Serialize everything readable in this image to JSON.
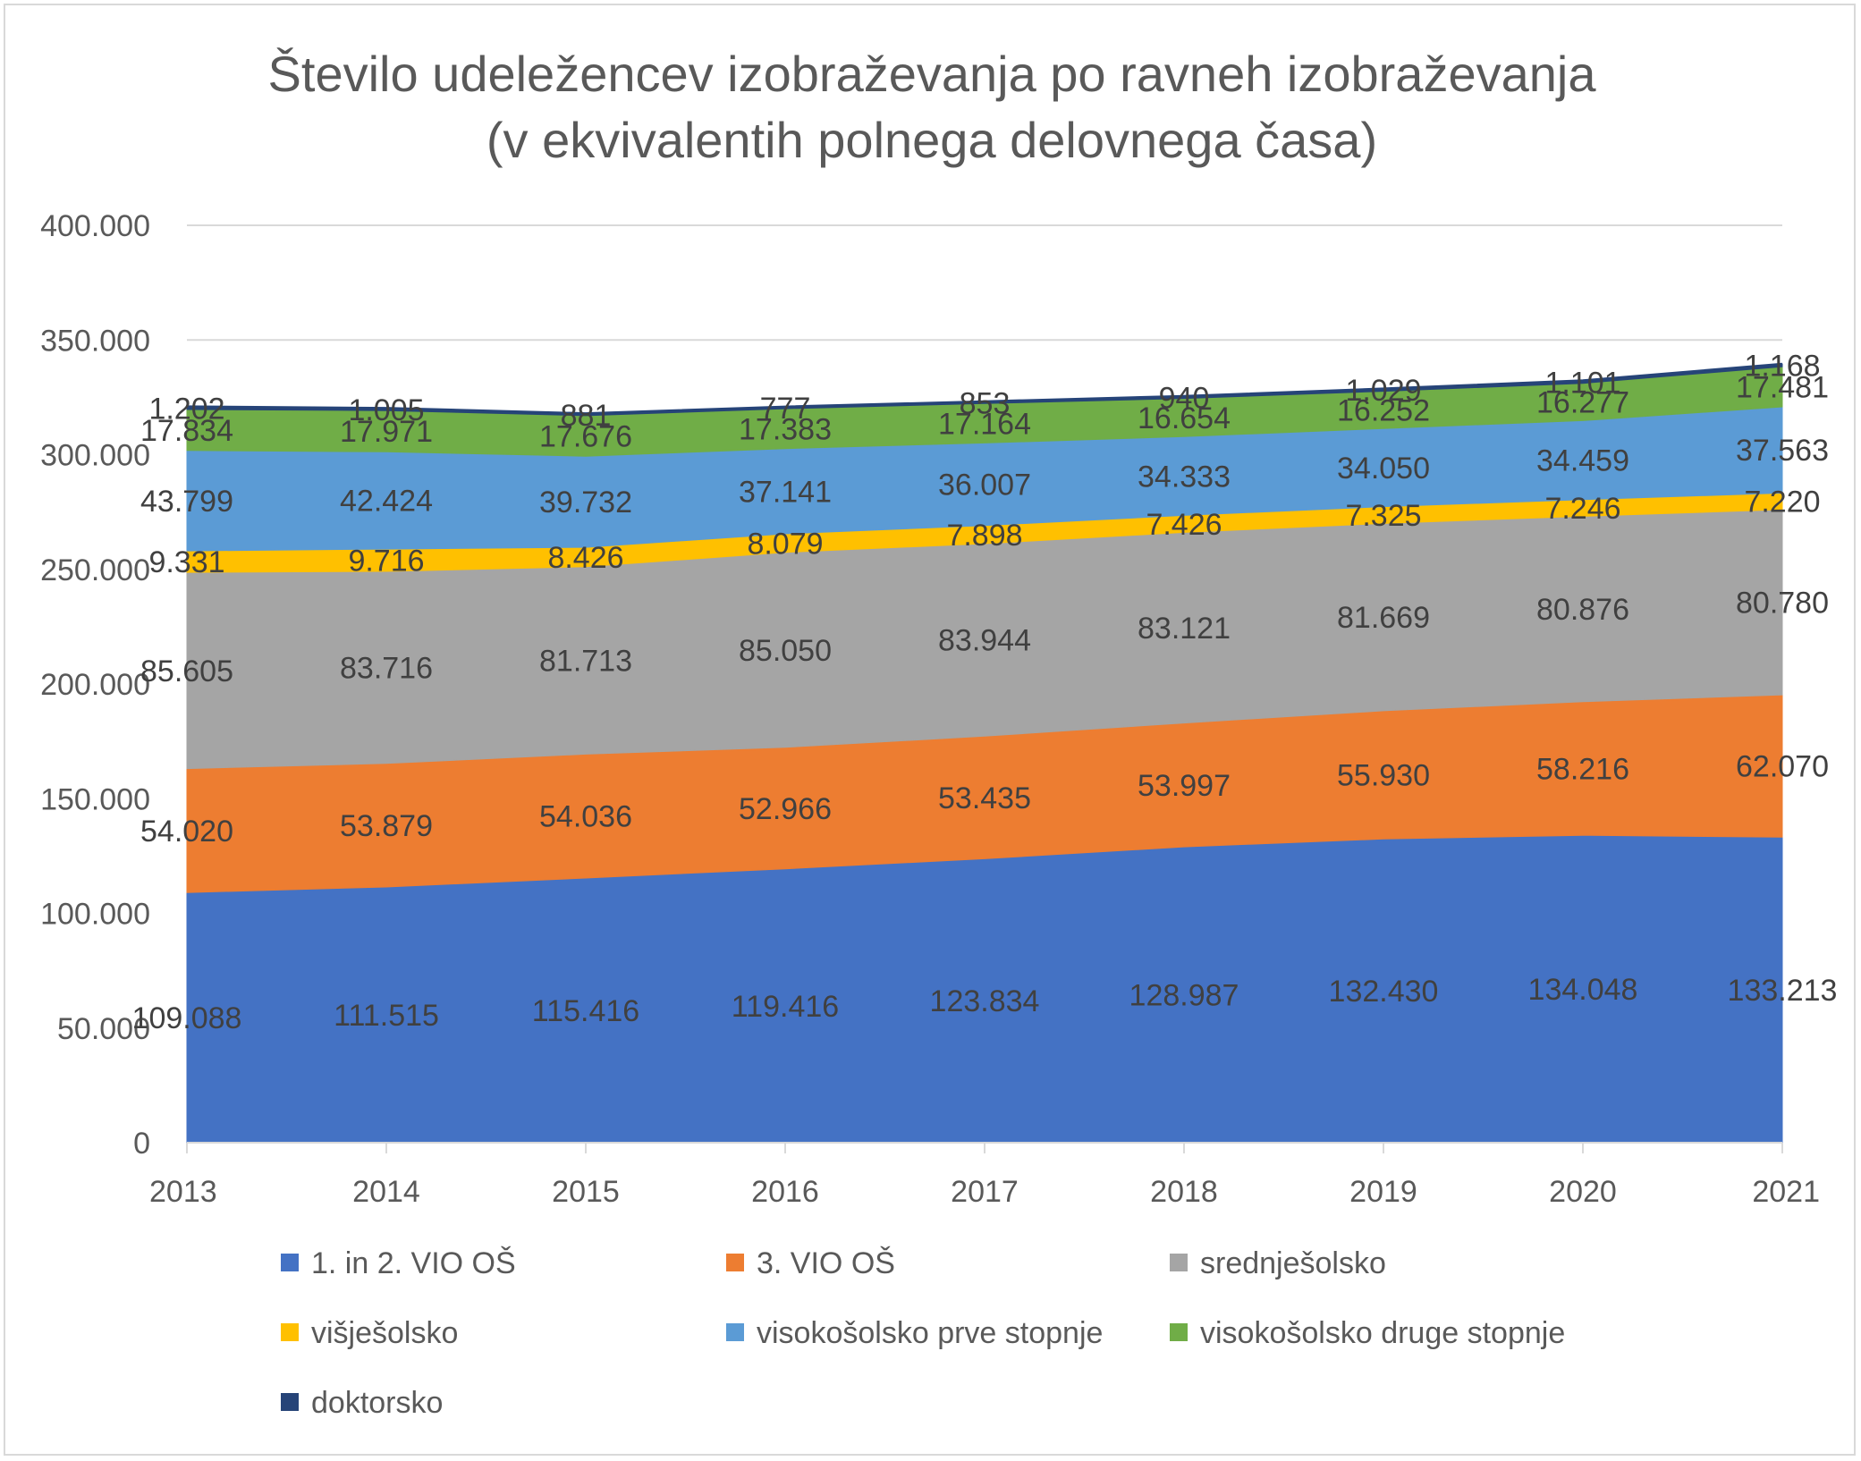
{
  "chart_data": {
    "type": "area",
    "stacked": true,
    "title": [
      "Število udeležencev izobraževanja po ravneh izobraževanja",
      "(v ekvivalentih polnega delovnega časa)"
    ],
    "categories": [
      "2013",
      "2014",
      "2015",
      "2016",
      "2017",
      "2018",
      "2019",
      "2020",
      "2021"
    ],
    "ylim": [
      0,
      400000
    ],
    "yticks": [
      {
        "value": 0,
        "label": "0"
      },
      {
        "value": 50000,
        "label": "50.000"
      },
      {
        "value": 100000,
        "label": "100.000"
      },
      {
        "value": 150000,
        "label": "150.000"
      },
      {
        "value": 200000,
        "label": "200.000"
      },
      {
        "value": 250000,
        "label": "250.000"
      },
      {
        "value": 300000,
        "label": "300.000"
      },
      {
        "value": 350000,
        "label": "350.000"
      },
      {
        "value": 400000,
        "label": "400.000"
      }
    ],
    "grid": true,
    "legend_position": "bottom",
    "series": [
      {
        "name": "1. in 2. VIO OŠ",
        "color": "#4472C4",
        "values": [
          109088,
          111515,
          115416,
          119416,
          123834,
          128987,
          132430,
          134048,
          133213
        ],
        "labels": [
          "109.088",
          "111.515",
          "115.416",
          "119.416",
          "123.834",
          "128.987",
          "132.430",
          "134.048",
          "133.213"
        ]
      },
      {
        "name": "3. VIO OŠ",
        "color": "#ED7D31",
        "values": [
          54020,
          53879,
          54036,
          52966,
          53435,
          53997,
          55930,
          58216,
          62070
        ],
        "labels": [
          "54.020",
          "53.879",
          "54.036",
          "52.966",
          "53.435",
          "53.997",
          "55.930",
          "58.216",
          "62.070"
        ]
      },
      {
        "name": "srednješolsko",
        "color": "#A5A5A5",
        "values": [
          85605,
          83716,
          81713,
          85050,
          83944,
          83121,
          81669,
          80876,
          80780
        ],
        "labels": [
          "85.605",
          "83.716",
          "81.713",
          "85.050",
          "83.944",
          "83.121",
          "81.669",
          "80.876",
          "80.780"
        ]
      },
      {
        "name": "višješolsko",
        "color": "#FFC000",
        "values": [
          9331,
          9716,
          8426,
          8079,
          7898,
          7426,
          7325,
          7246,
          7220
        ],
        "labels": [
          "9.331",
          "9.716",
          "8.426",
          "8.079",
          "7.898",
          "7.426",
          "7.325",
          "7.246",
          "7.220"
        ]
      },
      {
        "name": "visokošolsko prve stopnje",
        "color": "#5B9BD5",
        "values": [
          43799,
          42424,
          39732,
          37141,
          36007,
          34333,
          34050,
          34459,
          37563
        ],
        "labels": [
          "43.799",
          "42.424",
          "39.732",
          "37.141",
          "36.007",
          "34.333",
          "34.050",
          "34.459",
          "37.563"
        ]
      },
      {
        "name": "visokošolsko druge stopnje",
        "color": "#70AD47",
        "values": [
          17834,
          17971,
          17676,
          17383,
          17164,
          16654,
          16252,
          16277,
          17481
        ],
        "labels": [
          "17.834",
          "17.971",
          "17.676",
          "17.383",
          "17.164",
          "16.654",
          "16.252",
          "16.277",
          "17.481"
        ]
      },
      {
        "name": "doktorsko",
        "color": "#264478",
        "values": [
          1202,
          1005,
          881,
          777,
          853,
          940,
          1029,
          1101,
          1168
        ],
        "labels": [
          "1.202",
          "1.005",
          "881",
          "777",
          "853",
          "940",
          "1.029",
          "1.101",
          "1.168"
        ]
      }
    ]
  }
}
